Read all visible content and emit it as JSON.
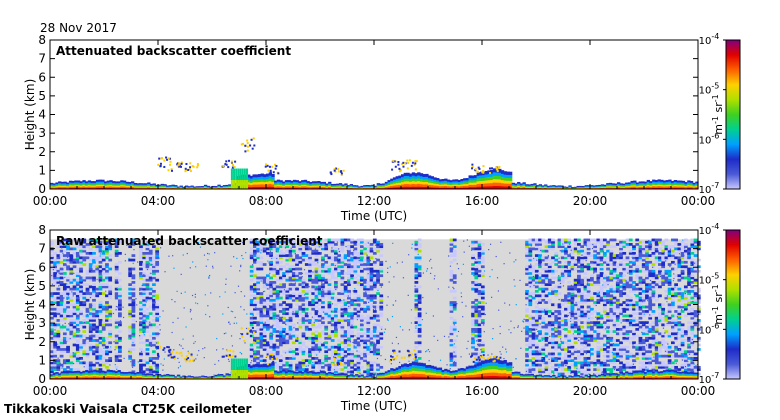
{
  "date": "28 Nov 2017",
  "site": "Tikkakoski Vaisala CT25K ceilometer",
  "colors": {
    "background_grey": "#d9d9d9",
    "colormap": [
      "#c8c8ff",
      "#4a5ad6",
      "#1e2cc8",
      "#00a0ff",
      "#00d090",
      "#40d020",
      "#b0e000",
      "#ffd000",
      "#ff6000",
      "#e00000",
      "#800080"
    ]
  },
  "chart_data": [
    {
      "type": "heatmap",
      "title": "Attenuated backscatter coefficient",
      "xlabel": "Time (UTC)",
      "ylabel": "Height (km)",
      "x_ticks": [
        "00:00",
        "04:00",
        "08:00",
        "12:00",
        "16:00",
        "20:00",
        "00:00"
      ],
      "y_ticks": [
        "0",
        "1",
        "2",
        "3",
        "4",
        "5",
        "6",
        "7",
        "8"
      ],
      "xlim": [
        0,
        24
      ],
      "ylim": [
        0,
        8
      ],
      "colorbar": {
        "ticks": [
          "10",
          "10",
          "10",
          "10"
        ],
        "exponents": [
          "-7",
          "-6",
          "-5",
          "-4"
        ],
        "label": "m",
        "label_exp1": "-1",
        "label_mid": " sr",
        "label_exp2": "-1"
      }
    },
    {
      "type": "heatmap",
      "title": "Raw attenuated backscatter coefficient",
      "xlabel": "Time (UTC)",
      "ylabel": "Height (km)",
      "x_ticks": [
        "00:00",
        "04:00",
        "08:00",
        "12:00",
        "16:00",
        "20:00",
        "00:00"
      ],
      "y_ticks": [
        "0",
        "1",
        "2",
        "3",
        "4",
        "5",
        "6",
        "7",
        "8"
      ],
      "xlim": [
        0,
        24
      ],
      "ylim": [
        0,
        8
      ],
      "colorbar": {
        "ticks": [
          "10",
          "10",
          "10",
          "10"
        ],
        "exponents": [
          "-7",
          "-6",
          "-5",
          "-4"
        ],
        "label": "m",
        "label_exp1": "-1",
        "label_mid": " sr",
        "label_exp2": "-1"
      }
    }
  ]
}
